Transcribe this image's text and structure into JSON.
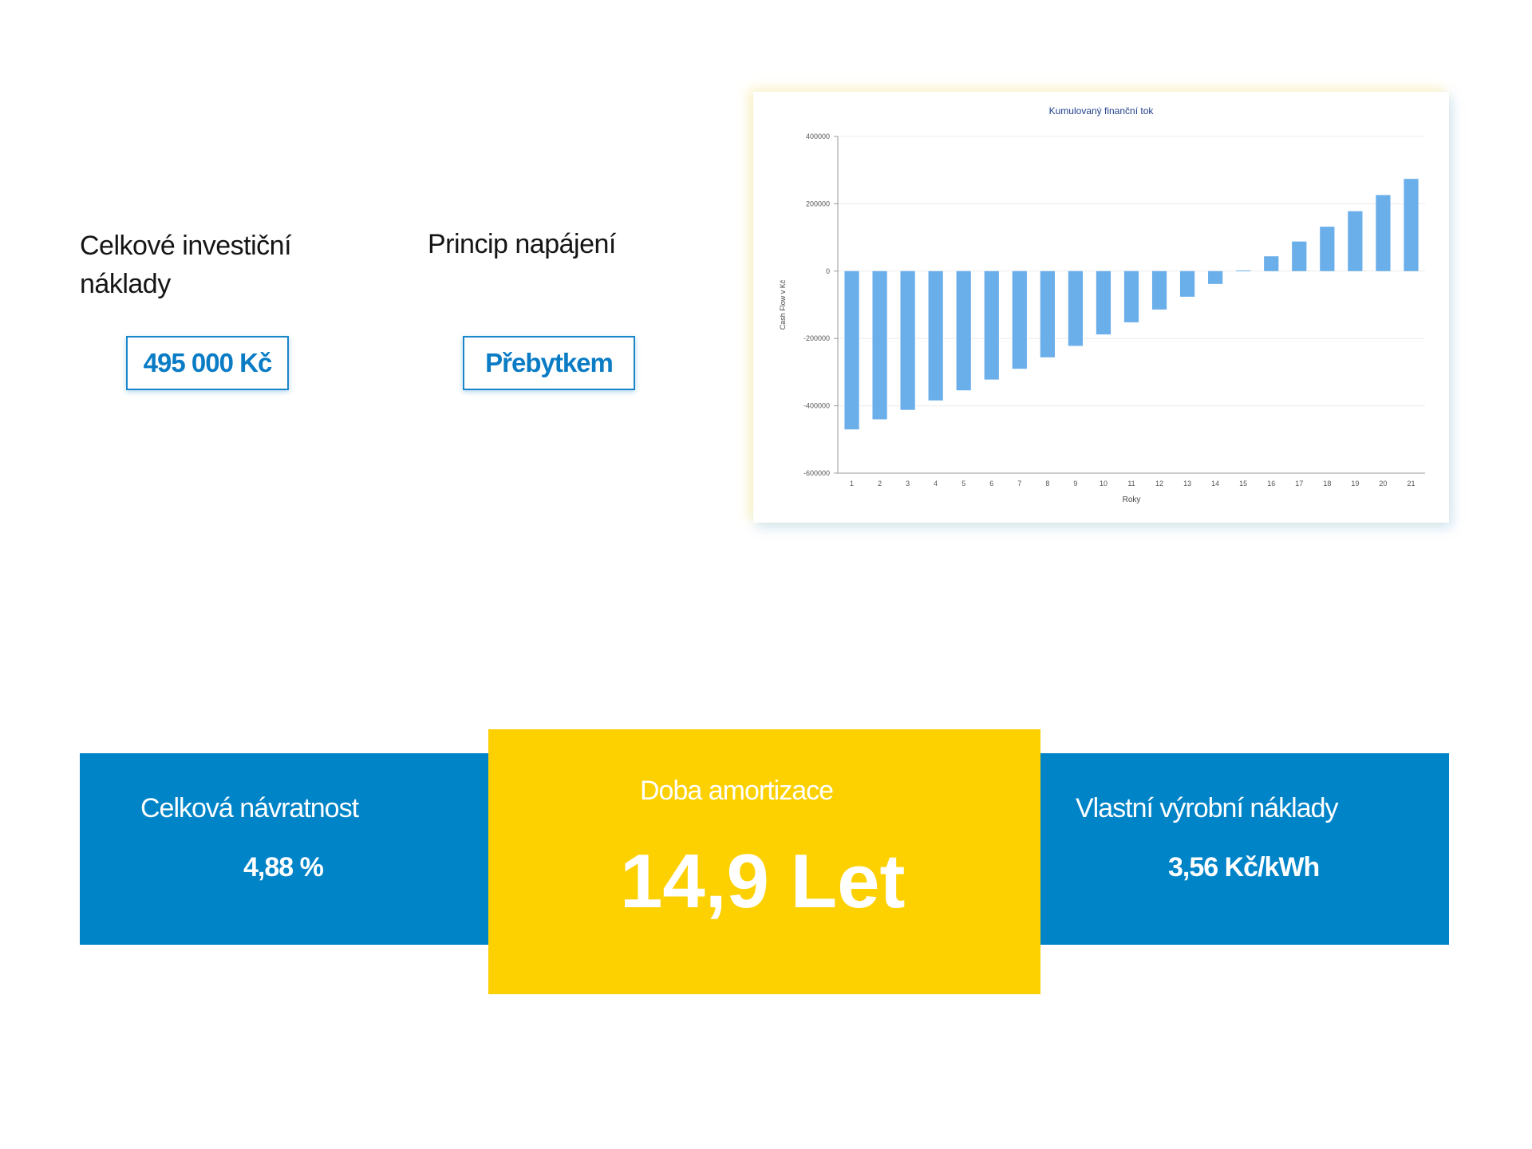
{
  "investment": {
    "label": "Celkové investiční náklady",
    "value": "495 000 Kč"
  },
  "power": {
    "label": "Princip napájení",
    "value": "Přebytkem"
  },
  "chart_data": {
    "type": "bar",
    "title": "Kumulovaný finanční tok",
    "xlabel": "Roky",
    "ylabel": "Cash Flow v Kč",
    "ylim": [
      -600000,
      400000
    ],
    "yticks": [
      "400000",
      "200000",
      "0",
      "-200000",
      "-400000",
      "-600000"
    ],
    "yticks_values": [
      400000,
      200000,
      0,
      -200000,
      -400000,
      -600000
    ],
    "categories": [
      "1",
      "2",
      "3",
      "4",
      "5",
      "6",
      "7",
      "8",
      "9",
      "10",
      "11",
      "12",
      "13",
      "14",
      "15",
      "16",
      "17",
      "18",
      "19",
      "20",
      "21"
    ],
    "values": [
      -470000,
      -440000,
      -412000,
      -384000,
      -354000,
      -322000,
      -290000,
      -256000,
      -222000,
      -188000,
      -152000,
      -114000,
      -76000,
      -38000,
      2000,
      44000,
      88000,
      132000,
      178000,
      226000,
      274000
    ],
    "grid": true,
    "bar_color": "#6aaeea"
  },
  "return": {
    "label": "Celková návratnost",
    "value": "4,88 %"
  },
  "amortization": {
    "label": "Doba amortizace",
    "value": "14,9 Let"
  },
  "own_cost": {
    "label": "Vlastní výrobní náklady",
    "value": "3,56 Kč/kWh"
  },
  "colors": {
    "blue": "#0084c8",
    "yellow": "#fdd000",
    "accent_text": "#0a7cc5"
  }
}
